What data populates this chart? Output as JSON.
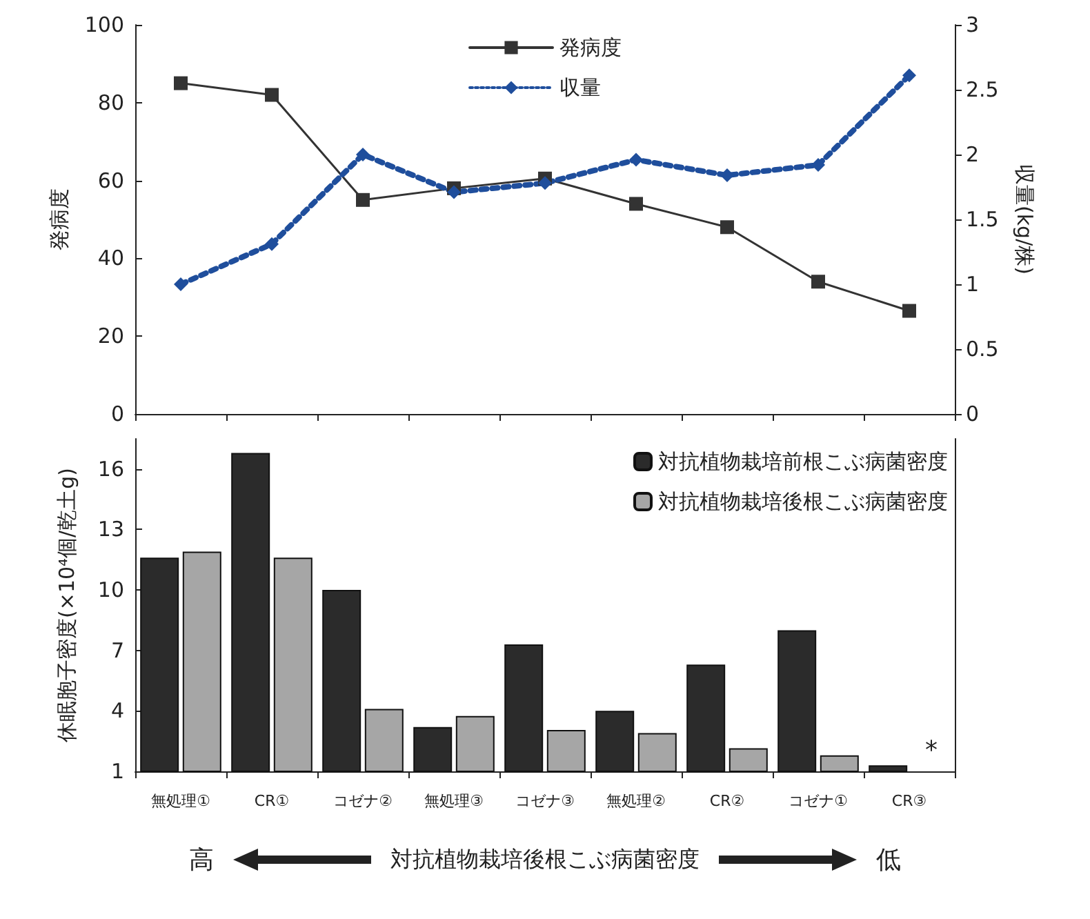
{
  "chart_data": [
    {
      "type": "line",
      "categories": [
        null,
        null,
        null,
        null,
        null,
        null,
        null,
        null,
        null
      ],
      "ylabel": "発病度",
      "y2label": "収量(kg/株)",
      "ylim": [
        0,
        100
      ],
      "yticks": [
        0,
        20,
        40,
        60,
        80,
        100
      ],
      "y2lim": [
        0,
        3
      ],
      "y2ticks": [
        0,
        0.5,
        1,
        1.5,
        2,
        2.5,
        3
      ],
      "legend": "top",
      "tick_labels": "y",
      "grid": false,
      "series": [
        {
          "name": "発病度",
          "color": "#333333",
          "marker": "square",
          "line_style": "solid",
          "values": [
            85,
            82,
            55,
            58,
            60.5,
            54,
            48,
            34,
            26.5
          ]
        },
        {
          "name": "収量",
          "color": "#1f4e9c",
          "marker": "diamond",
          "line_style": "dotted",
          "axis": "y2",
          "values": [
            1.0,
            1.31,
            2.0,
            1.71,
            1.78,
            1.96,
            1.84,
            1.92,
            2.61
          ]
        }
      ]
    },
    {
      "type": "bar",
      "categories": [
        "無処理①",
        "CR①",
        "コゼナ②",
        "無処理③",
        "コゼナ③",
        "無処理②",
        "CR②",
        "コゼナ①",
        "CR③"
      ],
      "ylabel": "休眠胞子密度(×10⁴個/乾土g)",
      "xlabel": "対抗植物栽培後根こぶ病菌密度",
      "ylim": [
        1,
        17.5
      ],
      "yticks": [
        1,
        4,
        7,
        10,
        13,
        16
      ],
      "legend": "top right",
      "grid": false,
      "annotations": [
        "高",
        "低",
        {
          "text": "*",
          "x": "CR③",
          "y": 1
        }
      ],
      "series": [
        {
          "name": "対抗植物栽培前根こぶ病菌密度",
          "color": "#2b2b2b",
          "values": [
            11.6,
            16.8,
            10.0,
            3.2,
            7.3,
            4.0,
            6.3,
            8.0,
            1.3
          ]
        },
        {
          "name": "対抗植物栽培後根こぶ病菌密度",
          "color": "#a6a6a6",
          "values": [
            11.9,
            11.6,
            4.1,
            3.75,
            3.05,
            2.9,
            2.15,
            1.8,
            null
          ]
        }
      ]
    }
  ]
}
